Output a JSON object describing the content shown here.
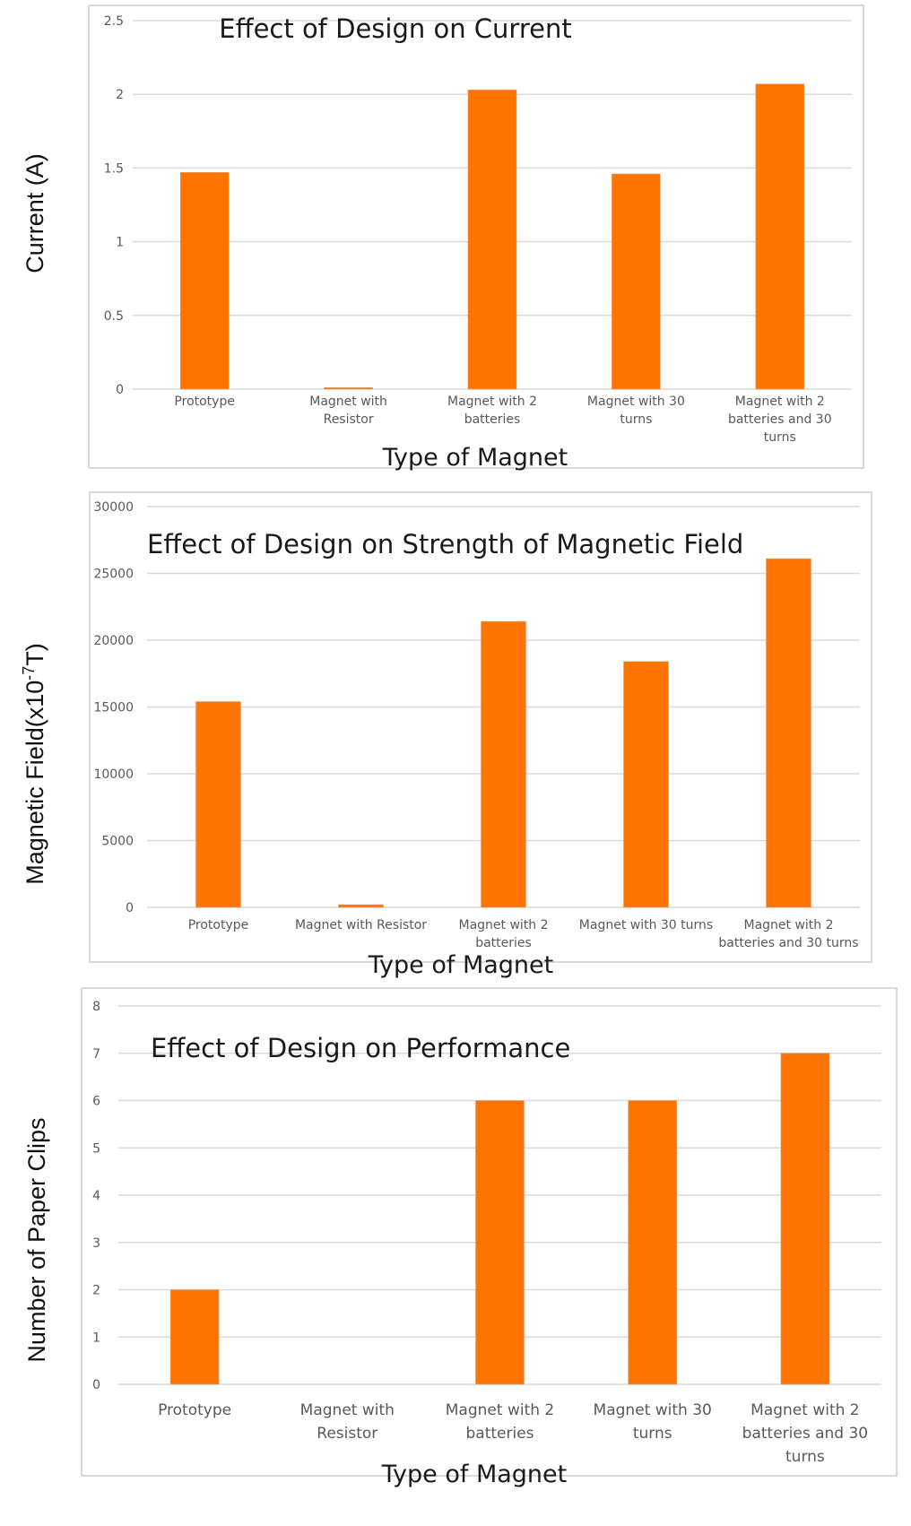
{
  "chart_data": [
    {
      "type": "bar",
      "title": "Effect of Design on Current",
      "xlabel": "Type of Magnet",
      "ylabel": "Current (A)",
      "categories": [
        [
          "Prototype"
        ],
        [
          "Magnet with",
          "Resistor"
        ],
        [
          "Magnet with 2",
          "batteries"
        ],
        [
          "Magnet with 30",
          "turns"
        ],
        [
          "Magnet with 2",
          "batteries and 30",
          "turns"
        ]
      ],
      "values": [
        1.47,
        0.01,
        2.03,
        1.46,
        2.07
      ],
      "ylim": [
        0,
        2.5
      ],
      "yticks": [
        "0",
        "0.5",
        "1",
        "1.5",
        "2",
        "2.5"
      ],
      "ytick_values": [
        0,
        0.5,
        1,
        1.5,
        2,
        2.5
      ],
      "grid": true,
      "legend": "none",
      "bar_color": "#ff7300"
    },
    {
      "type": "bar",
      "title": "Effect of Design on Strength of Magnetic Field",
      "xlabel": "Type of Magnet",
      "ylabel": "Magnetic Field(x10",
      "ylabel_sup": "-7",
      "ylabel_suffix": "T)",
      "categories": [
        [
          "Prototype"
        ],
        [
          "Magnet with Resistor"
        ],
        [
          "Magnet with 2",
          "batteries"
        ],
        [
          "Magnet with 30 turns"
        ],
        [
          "Magnet with 2",
          "batteries and 30 turns"
        ]
      ],
      "values": [
        15400,
        200,
        21400,
        18400,
        26100
      ],
      "ylim": [
        0,
        30000
      ],
      "yticks": [
        "0",
        "5000",
        "10000",
        "15000",
        "20000",
        "25000",
        "30000"
      ],
      "ytick_values": [
        0,
        5000,
        10000,
        15000,
        20000,
        25000,
        30000
      ],
      "grid": true,
      "legend": "none",
      "bar_color": "#ff7300"
    },
    {
      "type": "bar",
      "title": "Effect of Design on Performance",
      "xlabel": "Type of Magnet",
      "ylabel": "Number of Paper Clips",
      "categories": [
        [
          "Prototype"
        ],
        [
          "Magnet with",
          "Resistor"
        ],
        [
          "Magnet with 2",
          "batteries"
        ],
        [
          "Magnet with 30",
          "turns"
        ],
        [
          "Magnet with 2",
          "batteries and 30",
          "turns"
        ]
      ],
      "values": [
        2,
        0,
        6,
        6,
        7
      ],
      "ylim": [
        0,
        8
      ],
      "yticks": [
        "0",
        "1",
        "2",
        "3",
        "4",
        "5",
        "6",
        "7",
        "8"
      ],
      "ytick_values": [
        0,
        1,
        2,
        3,
        4,
        5,
        6,
        7,
        8
      ],
      "grid": true,
      "legend": "none",
      "bar_color": "#ff7300"
    }
  ]
}
